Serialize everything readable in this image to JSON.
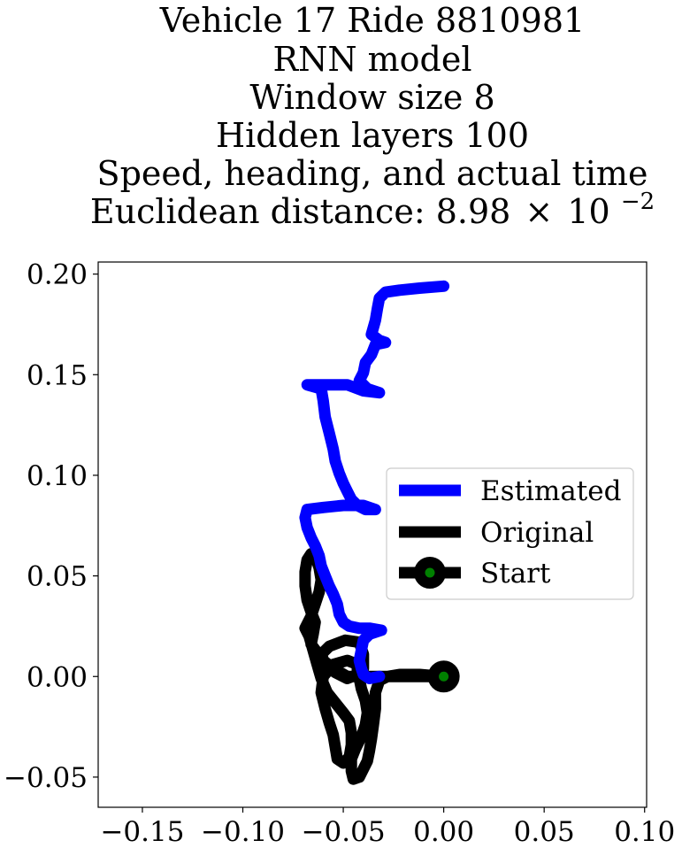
{
  "chart_data": {
    "type": "line",
    "title_lines": [
      "Vehicle 17 Ride 8810981",
      "RNN model",
      "Window size 8",
      "Hidden layers 100",
      "Speed, heading, and actual time"
    ],
    "distance_label": "Euclidean distance: 8.98",
    "distance_times": "×",
    "distance_base": "10",
    "distance_exp": "−2",
    "xlabel": "",
    "ylabel": "",
    "xlim": [
      -0.172,
      0.101
    ],
    "ylim": [
      -0.065,
      0.206
    ],
    "xticks": [
      -0.15,
      -0.1,
      -0.05,
      0.0,
      0.05,
      0.1
    ],
    "xtick_labels": [
      "−0.15",
      "−0.10",
      "−0.05",
      "0.00",
      "0.05",
      "0.10"
    ],
    "yticks": [
      -0.05,
      0.0,
      0.05,
      0.1,
      0.15,
      0.2
    ],
    "ytick_labels": [
      "−0.05",
      "0.00",
      "0.05",
      "0.10",
      "0.15",
      "0.20"
    ],
    "grid": false,
    "legend_position": "center-right",
    "series": [
      {
        "name": "Estimated",
        "color": "#0000ff",
        "points": [
          [
            0.0,
            0.194
          ],
          [
            -0.012,
            0.193
          ],
          [
            -0.022,
            0.192
          ],
          [
            -0.029,
            0.191
          ],
          [
            -0.032,
            0.188
          ],
          [
            -0.033,
            0.183
          ],
          [
            -0.034,
            0.177
          ],
          [
            -0.036,
            0.17
          ],
          [
            -0.032,
            0.167
          ],
          [
            -0.029,
            0.166
          ],
          [
            -0.034,
            0.165
          ],
          [
            -0.036,
            0.16
          ],
          [
            -0.039,
            0.156
          ],
          [
            -0.04,
            0.151
          ],
          [
            -0.042,
            0.147
          ],
          [
            -0.038,
            0.143
          ],
          [
            -0.032,
            0.141
          ],
          [
            -0.04,
            0.142
          ],
          [
            -0.048,
            0.145
          ],
          [
            -0.058,
            0.145
          ],
          [
            -0.068,
            0.145
          ],
          [
            -0.061,
            0.143
          ],
          [
            -0.06,
            0.137
          ],
          [
            -0.059,
            0.129
          ],
          [
            -0.057,
            0.121
          ],
          [
            -0.055,
            0.113
          ],
          [
            -0.054,
            0.107
          ],
          [
            -0.052,
            0.101
          ],
          [
            -0.05,
            0.096
          ],
          [
            -0.048,
            0.092
          ],
          [
            -0.046,
            0.088
          ],
          [
            -0.043,
            0.085
          ],
          [
            -0.039,
            0.083
          ],
          [
            -0.034,
            0.083
          ],
          [
            -0.04,
            0.085
          ],
          [
            -0.05,
            0.085
          ],
          [
            -0.06,
            0.084
          ],
          [
            -0.068,
            0.083
          ],
          [
            -0.069,
            0.079
          ],
          [
            -0.068,
            0.074
          ],
          [
            -0.066,
            0.069
          ],
          [
            -0.064,
            0.065
          ],
          [
            -0.062,
            0.06
          ],
          [
            -0.061,
            0.055
          ],
          [
            -0.059,
            0.05
          ],
          [
            -0.057,
            0.045
          ],
          [
            -0.055,
            0.041
          ],
          [
            -0.053,
            0.036
          ],
          [
            -0.052,
            0.031
          ],
          [
            -0.05,
            0.027
          ],
          [
            -0.047,
            0.025
          ],
          [
            -0.042,
            0.024
          ],
          [
            -0.037,
            0.024
          ],
          [
            -0.031,
            0.023
          ],
          [
            -0.037,
            0.021
          ],
          [
            -0.04,
            0.018
          ],
          [
            -0.041,
            0.013
          ],
          [
            -0.042,
            0.008
          ],
          [
            -0.041,
            0.004
          ],
          [
            -0.04,
            0.001
          ],
          [
            -0.037,
            -0.001
          ],
          [
            -0.032,
            0.0
          ]
        ]
      },
      {
        "name": "Original",
        "color": "#000000",
        "points": [
          [
            0.0,
            0.0
          ],
          [
            -0.012,
            0.001
          ],
          [
            -0.022,
            0.001
          ],
          [
            -0.028,
            0.0
          ],
          [
            -0.032,
            -0.002
          ],
          [
            -0.034,
            -0.008
          ],
          [
            -0.034,
            -0.016
          ],
          [
            -0.035,
            -0.024
          ],
          [
            -0.036,
            -0.031
          ],
          [
            -0.037,
            -0.037
          ],
          [
            -0.038,
            -0.042
          ],
          [
            -0.04,
            -0.046
          ],
          [
            -0.042,
            -0.05
          ],
          [
            -0.045,
            -0.051
          ],
          [
            -0.046,
            -0.047
          ],
          [
            -0.046,
            -0.041
          ],
          [
            -0.044,
            -0.036
          ],
          [
            -0.041,
            -0.03
          ],
          [
            -0.039,
            -0.024
          ],
          [
            -0.038,
            -0.018
          ],
          [
            -0.039,
            -0.012
          ],
          [
            -0.041,
            -0.006
          ],
          [
            -0.042,
            -0.001
          ],
          [
            -0.04,
            0.004
          ],
          [
            -0.04,
            0.011
          ],
          [
            -0.042,
            0.017
          ],
          [
            -0.049,
            0.018
          ],
          [
            -0.057,
            0.015
          ],
          [
            -0.061,
            0.011
          ],
          [
            -0.059,
            0.006
          ],
          [
            -0.054,
            0.002
          ],
          [
            -0.048,
            -0.001
          ],
          [
            -0.043,
            0.001
          ],
          [
            -0.043,
            0.006
          ],
          [
            -0.048,
            0.008
          ],
          [
            -0.055,
            0.006
          ],
          [
            -0.06,
            0.0
          ],
          [
            -0.061,
            -0.008
          ],
          [
            -0.059,
            -0.016
          ],
          [
            -0.057,
            -0.023
          ],
          [
            -0.055,
            -0.029
          ],
          [
            -0.054,
            -0.035
          ],
          [
            -0.053,
            -0.041
          ],
          [
            -0.05,
            -0.043
          ],
          [
            -0.047,
            -0.04
          ],
          [
            -0.046,
            -0.034
          ],
          [
            -0.046,
            -0.028
          ],
          [
            -0.047,
            -0.022
          ],
          [
            -0.05,
            -0.018
          ],
          [
            -0.054,
            -0.013
          ],
          [
            -0.058,
            -0.008
          ],
          [
            -0.061,
            -0.001
          ],
          [
            -0.063,
            0.006
          ],
          [
            -0.065,
            0.013
          ],
          [
            -0.067,
            0.02
          ],
          [
            -0.069,
            0.024
          ],
          [
            -0.066,
            0.03
          ],
          [
            -0.064,
            0.036
          ],
          [
            -0.062,
            0.042
          ],
          [
            -0.061,
            0.048
          ],
          [
            -0.062,
            0.054
          ],
          [
            -0.064,
            0.06
          ],
          [
            -0.066,
            0.061
          ],
          [
            -0.068,
            0.058
          ],
          [
            -0.069,
            0.052
          ],
          [
            -0.069,
            0.045
          ],
          [
            -0.068,
            0.038
          ],
          [
            -0.066,
            0.032
          ],
          [
            -0.064,
            0.027
          ],
          [
            -0.065,
            0.021
          ],
          [
            -0.066,
            0.016
          ],
          [
            -0.063,
            0.012
          ],
          [
            -0.06,
            0.008
          ],
          [
            -0.055,
            0.004
          ],
          [
            -0.048,
            0.0
          ],
          [
            -0.04,
            0.0
          ],
          [
            -0.03,
            0.0
          ],
          [
            -0.018,
            0.0
          ],
          [
            -0.008,
            0.0
          ],
          [
            0.0,
            0.0
          ]
        ]
      },
      {
        "name": "Start",
        "color": "#000000",
        "marker_face": "#008000",
        "points": [
          [
            0.0,
            0.0
          ]
        ]
      }
    ]
  }
}
